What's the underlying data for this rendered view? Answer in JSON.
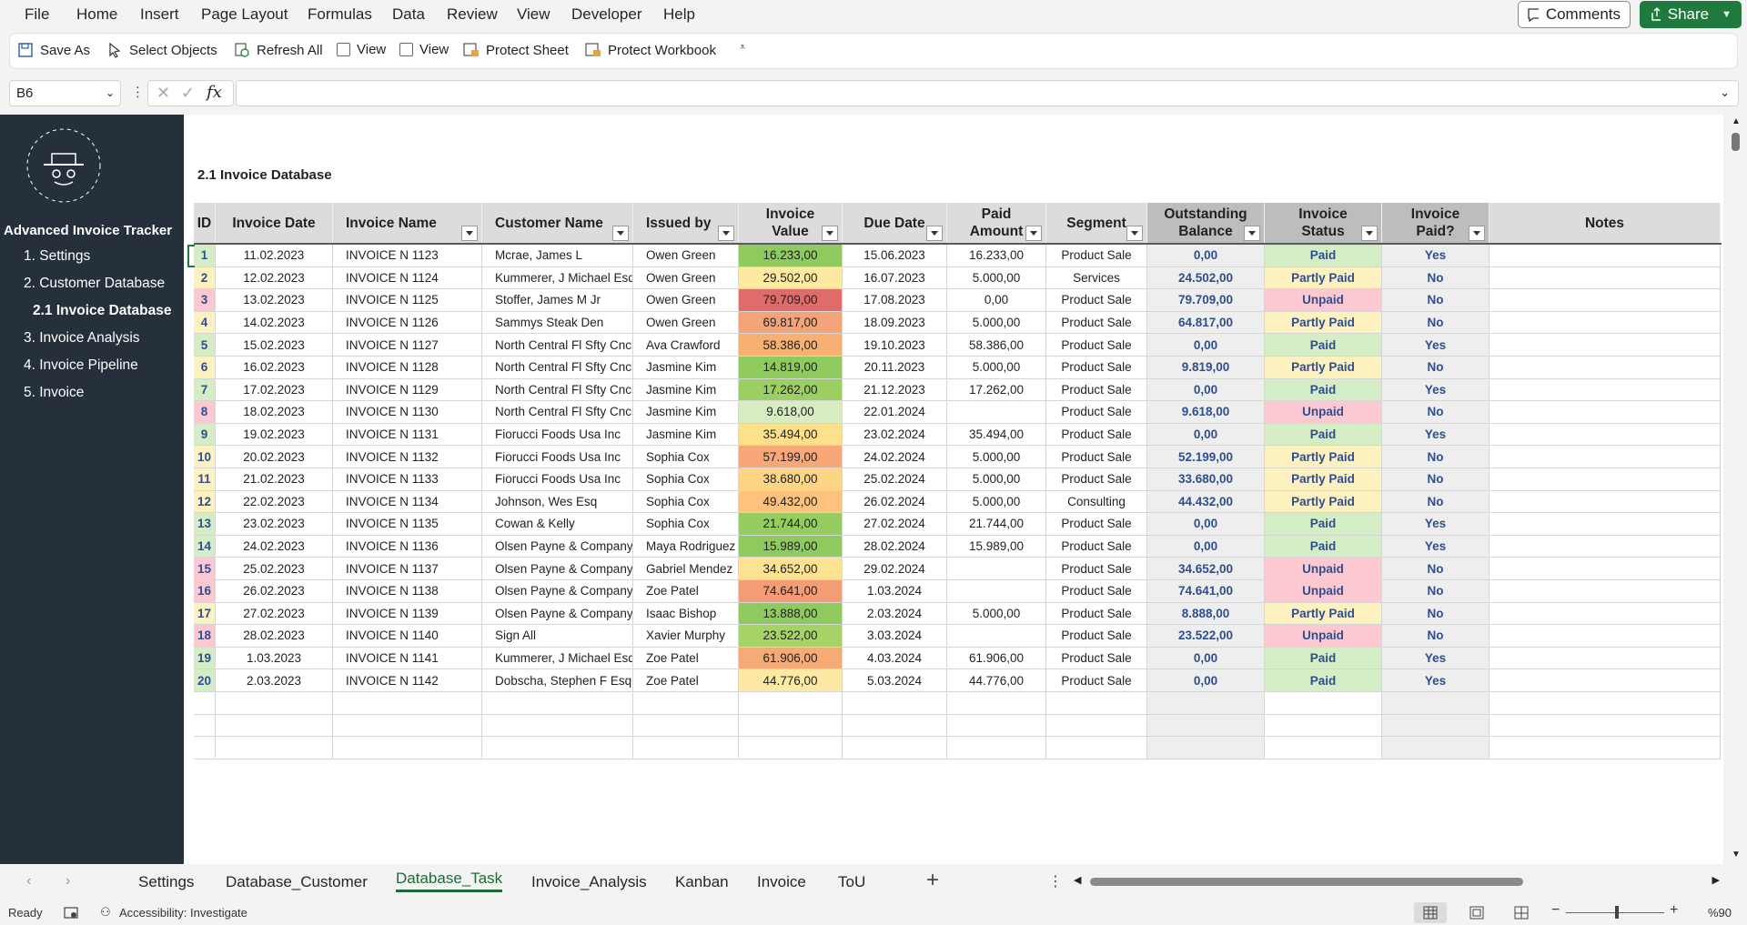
{
  "menu": [
    "File",
    "Home",
    "Insert",
    "Page Layout",
    "Formulas",
    "Data",
    "Review",
    "View",
    "Developer",
    "Help"
  ],
  "top_buttons": {
    "comments": "Comments",
    "share": "Share"
  },
  "ribbon": {
    "save_as": "Save As",
    "select_objects": "Select Objects",
    "refresh_all": "Refresh All",
    "view1": "View",
    "view2": "View",
    "protect_sheet": "Protect Sheet",
    "protect_workbook": "Protect Workbook"
  },
  "formula_bar": {
    "name_box": "B6",
    "formula": ""
  },
  "sidebar": {
    "title": "Advanced Invoice Tracker",
    "items": [
      "1. Settings",
      "2. Customer Database",
      "2.1 Invoice Database",
      "3. Invoice Analysis",
      "4. Invoice Pipeline",
      "5. Invoice"
    ]
  },
  "sheet": {
    "title": "2.1 Invoice Database",
    "headers": [
      "ID",
      "Invoice Date",
      "Invoice Name",
      "Customer Name",
      "Issued by",
      "Invoice Value",
      "Due Date",
      "Paid Amount",
      "Segment",
      "Outstanding Balance",
      "Invoice Status",
      "Invoice Paid?",
      "Notes"
    ],
    "rows": [
      [
        "1",
        "11.02.2023",
        "INVOICE N 1123",
        "Mcrae, James L",
        "Owen Green",
        "16.233,00",
        "15.06.2023",
        "16.233,00",
        "Product Sale",
        "0,00",
        "Paid",
        "Yes"
      ],
      [
        "2",
        "12.02.2023",
        "INVOICE N 1124",
        "Kummerer, J Michael Esq",
        "Owen Green",
        "29.502,00",
        "16.07.2023",
        "5.000,00",
        "Services",
        "24.502,00",
        "Partly Paid",
        "No"
      ],
      [
        "3",
        "13.02.2023",
        "INVOICE N 1125",
        "Stoffer, James M Jr",
        "Owen Green",
        "79.709,00",
        "17.08.2023",
        "0,00",
        "Product Sale",
        "79.709,00",
        "Unpaid",
        "No"
      ],
      [
        "4",
        "14.02.2023",
        "INVOICE N 1126",
        "Sammys Steak Den",
        "Owen Green",
        "69.817,00",
        "18.09.2023",
        "5.000,00",
        "Product Sale",
        "64.817,00",
        "Partly Paid",
        "No"
      ],
      [
        "5",
        "15.02.2023",
        "INVOICE N 1127",
        "North Central Fl Sfty Cncl",
        "Ava Crawford",
        "58.386,00",
        "19.10.2023",
        "58.386,00",
        "Product Sale",
        "0,00",
        "Paid",
        "Yes"
      ],
      [
        "6",
        "16.02.2023",
        "INVOICE N 1128",
        "North Central Fl Sfty Cncl",
        "Jasmine Kim",
        "14.819,00",
        "20.11.2023",
        "5.000,00",
        "Product Sale",
        "9.819,00",
        "Partly Paid",
        "No"
      ],
      [
        "7",
        "17.02.2023",
        "INVOICE N 1129",
        "North Central Fl Sfty Cncl",
        "Jasmine Kim",
        "17.262,00",
        "21.12.2023",
        "17.262,00",
        "Product Sale",
        "0,00",
        "Paid",
        "Yes"
      ],
      [
        "8",
        "18.02.2023",
        "INVOICE N 1130",
        "North Central Fl Sfty Cncl",
        "Jasmine Kim",
        "9.618,00",
        "22.01.2024",
        "",
        "Product Sale",
        "9.618,00",
        "Unpaid",
        "No"
      ],
      [
        "9",
        "19.02.2023",
        "INVOICE N 1131",
        "Fiorucci Foods Usa Inc",
        "Jasmine Kim",
        "35.494,00",
        "23.02.2024",
        "35.494,00",
        "Product Sale",
        "0,00",
        "Paid",
        "Yes"
      ],
      [
        "10",
        "20.02.2023",
        "INVOICE N 1132",
        "Fiorucci Foods Usa Inc",
        "Sophia Cox",
        "57.199,00",
        "24.02.2024",
        "5.000,00",
        "Product Sale",
        "52.199,00",
        "Partly Paid",
        "No"
      ],
      [
        "11",
        "21.02.2023",
        "INVOICE N 1133",
        "Fiorucci Foods Usa Inc",
        "Sophia Cox",
        "38.680,00",
        "25.02.2024",
        "5.000,00",
        "Product Sale",
        "33.680,00",
        "Partly Paid",
        "No"
      ],
      [
        "12",
        "22.02.2023",
        "INVOICE N 1134",
        "Johnson, Wes Esq",
        "Sophia Cox",
        "49.432,00",
        "26.02.2024",
        "5.000,00",
        "Consulting",
        "44.432,00",
        "Partly Paid",
        "No"
      ],
      [
        "13",
        "23.02.2023",
        "INVOICE N 1135",
        "Cowan & Kelly",
        "Sophia Cox",
        "21.744,00",
        "27.02.2024",
        "21.744,00",
        "Product Sale",
        "0,00",
        "Paid",
        "Yes"
      ],
      [
        "14",
        "24.02.2023",
        "INVOICE N 1136",
        "Olsen Payne & Company",
        "Maya Rodriguez",
        "15.989,00",
        "28.02.2024",
        "15.989,00",
        "Product Sale",
        "0,00",
        "Paid",
        "Yes"
      ],
      [
        "15",
        "25.02.2023",
        "INVOICE N 1137",
        "Olsen Payne & Company",
        "Gabriel Mendez",
        "34.652,00",
        "29.02.2024",
        "",
        "Product Sale",
        "34.652,00",
        "Unpaid",
        "No"
      ],
      [
        "16",
        "26.02.2023",
        "INVOICE N 1138",
        "Olsen Payne & Company",
        "Zoe Patel",
        "74.641,00",
        "1.03.2024",
        "",
        "Product Sale",
        "74.641,00",
        "Unpaid",
        "No"
      ],
      [
        "17",
        "27.02.2023",
        "INVOICE N 1139",
        "Olsen Payne & Company",
        "Isaac Bishop",
        "13.888,00",
        "2.03.2024",
        "5.000,00",
        "Product Sale",
        "8.888,00",
        "Partly Paid",
        "No"
      ],
      [
        "18",
        "28.02.2023",
        "INVOICE N 1140",
        "Sign All",
        "Xavier Murphy",
        "23.522,00",
        "3.03.2024",
        "",
        "Product Sale",
        "23.522,00",
        "Unpaid",
        "No"
      ],
      [
        "19",
        "1.03.2023",
        "INVOICE N 1141",
        "Kummerer, J Michael Esq",
        "Zoe Patel",
        "61.906,00",
        "4.03.2024",
        "61.906,00",
        "Product Sale",
        "0,00",
        "Paid",
        "Yes"
      ],
      [
        "20",
        "2.03.2023",
        "INVOICE N 1142",
        "Dobscha, Stephen F Esq",
        "Zoe Patel",
        "44.776,00",
        "5.03.2024",
        "44.776,00",
        "Product Sale",
        "0,00",
        "Paid",
        "Yes"
      ]
    ],
    "value_colors": [
      "#8fca5f",
      "#fde9a0",
      "#e06b6b",
      "#f4a478",
      "#f6b074",
      "#8fca5f",
      "#9ccf62",
      "#d8ecc2",
      "#fde08a",
      "#f7a778",
      "#fdd584",
      "#fcc27e",
      "#95cc5f",
      "#8fca5f",
      "#fde292",
      "#f49c75",
      "#8fca5f",
      "#a6d366",
      "#f5ab76",
      "#fde9a4"
    ],
    "status_colors": {
      "Paid": "#d4edc4",
      "Partly Paid": "#fdf1bf",
      "Unpaid": "#fcc9d2"
    }
  },
  "tabs": [
    "Settings",
    "Database_Customer",
    "Database_Task",
    "Invoice_Analysis",
    "Kanban",
    "Invoice",
    "ToU"
  ],
  "active_tab": "Database_Task",
  "status_bar": {
    "ready": "Ready",
    "accessibility": "Accessibility: Investigate",
    "zoom": "%90"
  }
}
